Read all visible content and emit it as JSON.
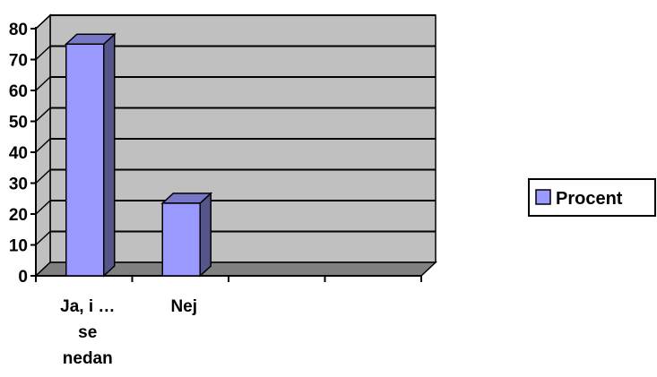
{
  "chart_data": {
    "type": "bar",
    "categories": [
      "Ja, i … se nedan",
      "Nej",
      "",
      ""
    ],
    "category_label_lines": [
      [
        "Ja, i …",
        "se",
        "nedan"
      ],
      [
        "Nej"
      ],
      [],
      []
    ],
    "series": [
      {
        "name": "Procent",
        "values": [
          75,
          23.5,
          null,
          null
        ],
        "color": "#9999ff"
      }
    ],
    "yticks": [
      "0",
      "10",
      "20",
      "30",
      "40",
      "50",
      "60",
      "70",
      "80"
    ],
    "ylim": [
      0,
      80
    ],
    "grid": true,
    "legend_position": "right",
    "style_3d": true,
    "wall_color": "#c0c0c0",
    "floor_color": "#808080",
    "bar_side_color": "#55558a",
    "bar_top_color": "#7777c8"
  }
}
